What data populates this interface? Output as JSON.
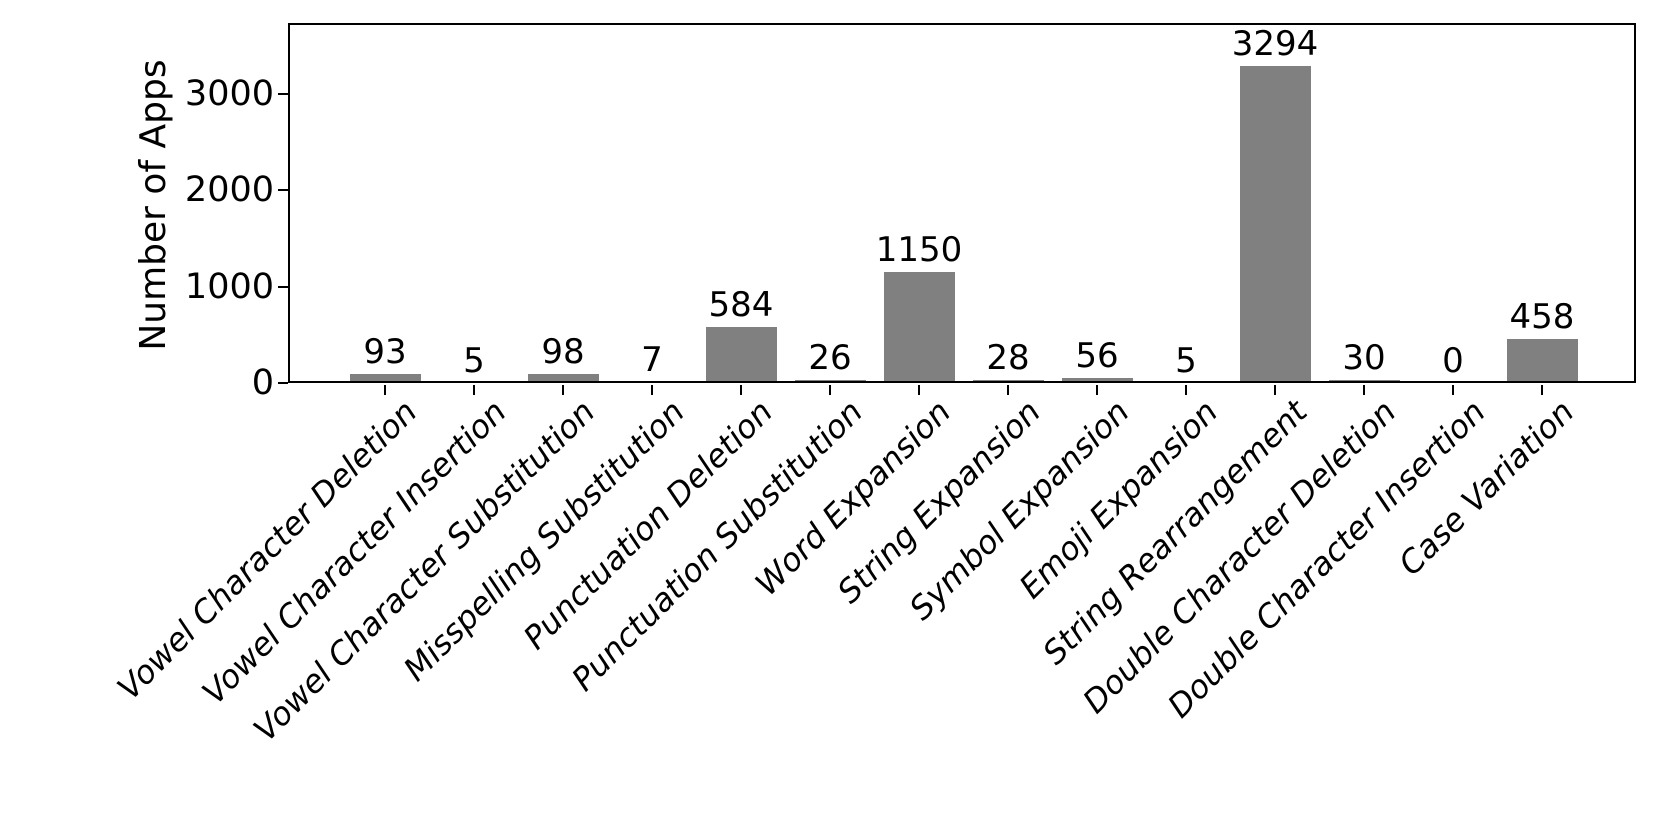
{
  "chart_data": {
    "type": "bar",
    "title": "",
    "xlabel": "",
    "ylabel": "Number of Apps",
    "categories": [
      "Vowel Character Deletion",
      "Vowel Character Insertion",
      "Vowel Character Substitution",
      "Misspelling Substitution",
      "Punctuation Deletion",
      "Punctuation Substitution",
      "Word Expansion",
      "String Expansion",
      "Symbol Expansion",
      "Emoji Expansion",
      "String Rearrangement",
      "Double Character Deletion",
      "Double Character Insertion",
      "Case Variation"
    ],
    "values": [
      93,
      5,
      98,
      7,
      584,
      26,
      1150,
      28,
      56,
      5,
      3294,
      30,
      0,
      458
    ],
    "yticks": [
      0,
      1000,
      2000,
      3000
    ],
    "ylim": [
      0,
      3733
    ],
    "grid": false,
    "legend": false,
    "bar_color": "#808080",
    "spine_color": "#000000",
    "text_color": "#000000",
    "background_color": "#ffffff"
  }
}
